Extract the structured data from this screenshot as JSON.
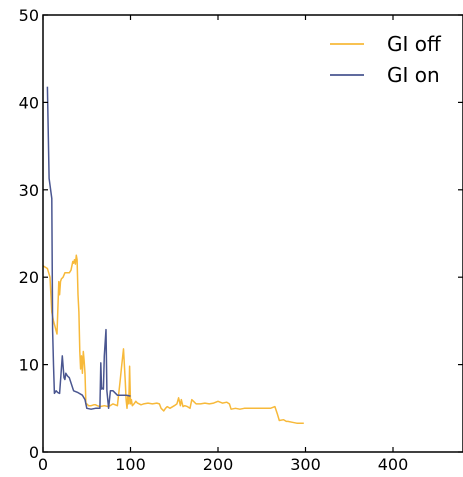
{
  "chart_data": {
    "type": "line",
    "title": "",
    "xlabel": "",
    "ylabel": "",
    "xlim": [
      0,
      480
    ],
    "ylim": [
      0,
      50
    ],
    "xticks": [
      0,
      100,
      200,
      300,
      400
    ],
    "yticks": [
      0,
      10,
      20,
      30,
      40,
      50
    ],
    "grid": false,
    "legend_position": "top-right",
    "series": [
      {
        "name": "GI off",
        "color": "#f7b93a",
        "x": [
          0,
          5,
          8,
          10,
          12,
          16,
          18,
          19,
          20,
          21,
          23,
          25,
          28,
          30,
          32,
          34,
          35,
          36,
          37,
          38,
          39,
          40,
          41,
          42,
          43,
          44,
          45,
          46,
          47,
          48,
          49,
          50,
          52,
          55,
          58,
          60,
          62,
          65,
          70,
          75,
          80,
          85,
          88,
          90,
          92,
          94,
          95,
          96,
          97,
          98,
          99,
          100,
          101,
          102,
          104,
          106,
          108,
          110,
          112,
          115,
          120,
          125,
          130,
          133,
          135,
          138,
          140,
          142,
          145,
          150,
          153,
          155,
          157,
          158,
          160,
          162,
          165,
          168,
          170,
          172,
          175,
          180,
          185,
          190,
          195,
          200,
          205,
          210,
          213,
          215,
          220,
          225,
          230,
          240,
          250,
          260,
          265,
          268,
          270,
          275,
          278,
          280,
          285,
          290,
          298
        ],
        "values": [
          21.3,
          21.0,
          20.0,
          16.0,
          15.0,
          13.5,
          19.5,
          18.0,
          19.5,
          19.8,
          20.0,
          20.5,
          20.5,
          20.5,
          20.8,
          21.8,
          21.6,
          22.0,
          21.5,
          22.5,
          22.0,
          18.0,
          16.0,
          11.5,
          9.5,
          11.0,
          9.0,
          11.5,
          10.5,
          9.0,
          5.5,
          5.5,
          5.3,
          5.3,
          5.4,
          5.4,
          5.3,
          5.2,
          5.3,
          5.2,
          5.5,
          5.3,
          8.0,
          10.0,
          11.8,
          8.0,
          6.0,
          5.0,
          6.5,
          5.5,
          9.8,
          5.5,
          6.0,
          5.3,
          5.5,
          5.8,
          5.6,
          5.5,
          5.4,
          5.5,
          5.6,
          5.5,
          5.6,
          5.5,
          5.0,
          4.7,
          5.0,
          5.2,
          5.0,
          5.3,
          5.5,
          6.2,
          5.3,
          6.0,
          5.2,
          5.3,
          5.2,
          5.0,
          6.0,
          5.8,
          5.5,
          5.5,
          5.6,
          5.5,
          5.6,
          5.8,
          5.6,
          5.7,
          5.5,
          4.9,
          5.0,
          4.9,
          5.0,
          5.0,
          5.0,
          5.0,
          5.2,
          4.3,
          3.6,
          3.7,
          3.5,
          3.5,
          3.4,
          3.3,
          3.3
        ]
      },
      {
        "name": "GI on",
        "color": "#4a5690",
        "x": [
          5,
          7,
          10,
          11,
          12,
          13,
          15,
          17,
          19,
          22,
          24,
          25,
          26,
          28,
          30,
          35,
          40,
          45,
          48,
          50,
          55,
          60,
          65,
          66,
          67,
          68,
          69,
          70,
          72,
          73,
          75,
          77,
          80,
          85,
          90,
          95,
          100
        ],
        "values": [
          41.8,
          31.3,
          29.0,
          14.0,
          10.0,
          6.7,
          7.0,
          6.8,
          6.7,
          11.0,
          8.5,
          8.3,
          9.0,
          8.7,
          8.5,
          7.0,
          6.8,
          6.5,
          6.0,
          5.0,
          4.9,
          5.0,
          5.0,
          10.2,
          7.2,
          7.3,
          7.2,
          11.0,
          14.0,
          7.0,
          5.0,
          7.0,
          7.0,
          6.5,
          6.5,
          6.5,
          6.4
        ]
      }
    ]
  }
}
